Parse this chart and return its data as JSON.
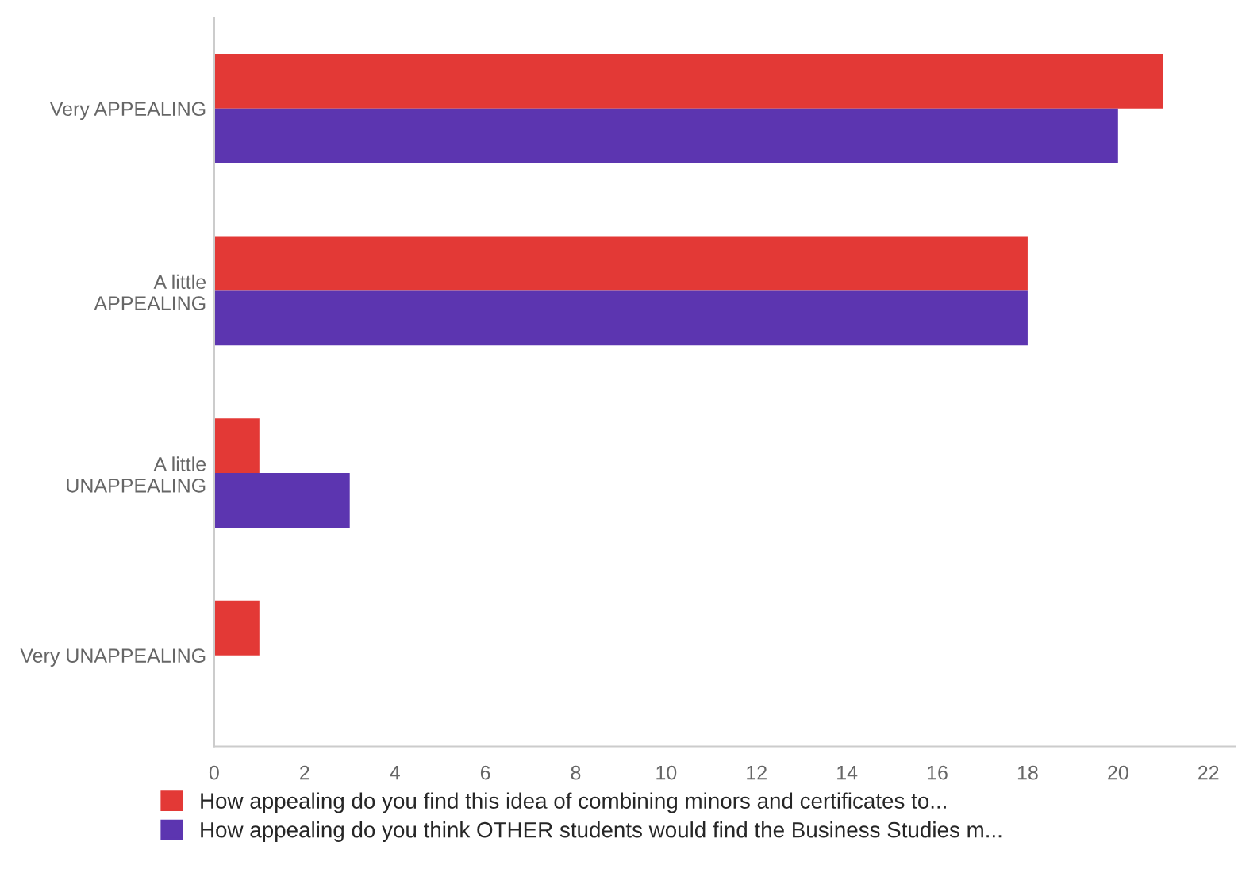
{
  "chart_data": {
    "type": "bar",
    "orientation": "horizontal",
    "categories": [
      "Very APPEALING",
      "A little\nAPPEALING",
      "A little\nUNAPPEALING",
      "Very UNAPPEALING"
    ],
    "series": [
      {
        "name": "How appealing do you find this idea of combining minors and certificates to...",
        "color": "#e33936",
        "values": [
          21,
          18,
          1,
          1
        ]
      },
      {
        "name": "How appealing do you think OTHER students would find the Business Studies m...",
        "color": "#5c35b0",
        "values": [
          20,
          18,
          3,
          null
        ]
      }
    ],
    "xlim": [
      0,
      22.6
    ],
    "xticks": [
      0,
      2,
      4,
      6,
      8,
      10,
      12,
      14,
      16,
      18,
      20,
      22
    ],
    "grid": false,
    "legend": "bottom"
  }
}
